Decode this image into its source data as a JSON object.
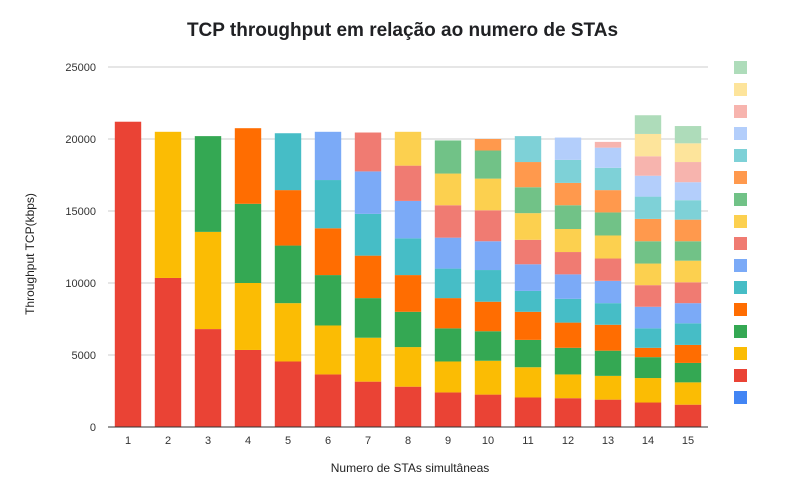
{
  "chart_data": {
    "type": "bar",
    "stacked": true,
    "title": "TCP throughput em relação ao numero de STAs",
    "xlabel": "Numero de STAs simultâneas",
    "ylabel": "Throughput TCP(kbps)",
    "ylim": [
      0,
      25000
    ],
    "yticks": [
      "0",
      "5000",
      "10000",
      "15000",
      "20000",
      "25000"
    ],
    "grid": true,
    "legend_position": "right",
    "categories": [
      "1",
      "2",
      "3",
      "4",
      "5",
      "6",
      "7",
      "8",
      "9",
      "10",
      "11",
      "12",
      "13",
      "14",
      "15"
    ],
    "series_colors": [
      "#4285f4",
      "#ea4335",
      "#fbbc04",
      "#34a853",
      "#ff6d01",
      "#46bdc6",
      "#7baaf7",
      "#f07b72",
      "#fcd04f",
      "#71c287",
      "#ff994d",
      "#7ed1d7",
      "#b3cefb",
      "#f7b4ae",
      "#fde49b",
      "#aedcba"
    ],
    "bars": [
      [
        21200
      ],
      [
        10350,
        10150
      ],
      [
        6800,
        6750,
        6650
      ],
      [
        5350,
        4650,
        5500,
        5250
      ],
      [
        4550,
        4050,
        4000,
        3850,
        3950
      ],
      [
        3650,
        3400,
        3500,
        3250,
        3350,
        3350
      ],
      [
        3150,
        3050,
        2750,
        2950,
        2900,
        2950,
        2700
      ],
      [
        2800,
        2750,
        2450,
        2550,
        2550,
        2600,
        2450,
        2350
      ],
      [
        2400,
        2150,
        2300,
        2100,
        2050,
        2150,
        2250,
        2200,
        2300
      ],
      [
        2250,
        2350,
        2050,
        2050,
        2200,
        2000,
        2150,
        2200,
        1950,
        800
      ],
      [
        2050,
        2100,
        1900,
        1950,
        1450,
        1850,
        1700,
        1850,
        1800,
        1750,
        1800
      ],
      [
        2000,
        1650,
        1850,
        1750,
        1650,
        1700,
        1550,
        1600,
        1650,
        1550,
        1600,
        1550
      ],
      [
        1900,
        1650,
        1750,
        1800,
        1500,
        1550,
        1550,
        1600,
        1600,
        1550,
        1550,
        1400,
        400
      ],
      [
        1700,
        1700,
        1450,
        650,
        1350,
        1500,
        1500,
        1500,
        1550,
        1550,
        1550,
        1450,
        1350,
        1550,
        1300
      ],
      [
        1550,
        1550,
        1350,
        1250,
        1500,
        1400,
        1450,
        1500,
        1350,
        1500,
        1350,
        1250,
        1400,
        1300,
        1200
      ]
    ]
  }
}
